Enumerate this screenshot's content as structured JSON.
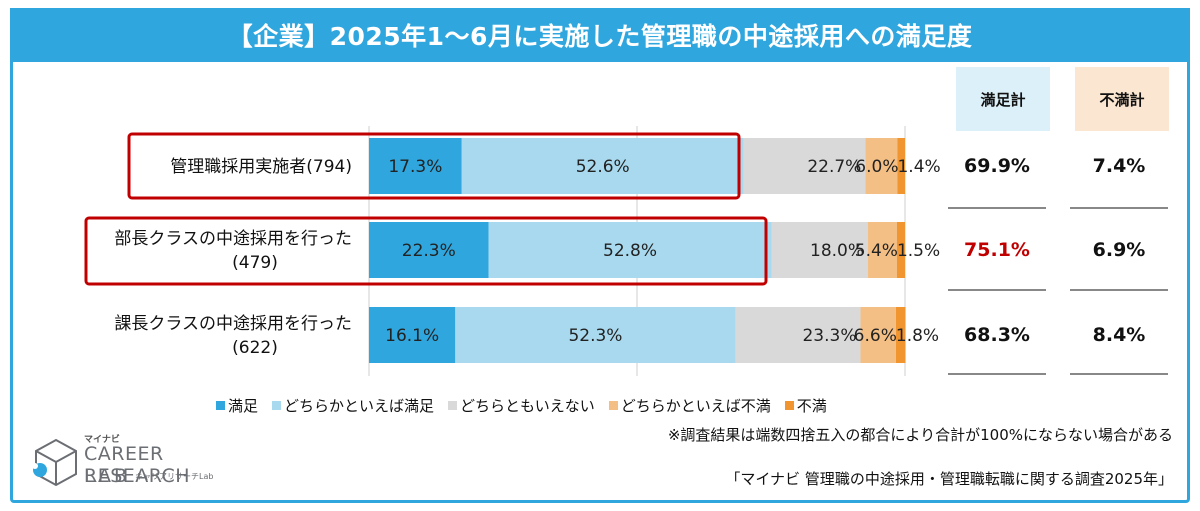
{
  "title": "【企業】2025年1～6月に実施した管理職の中途採用への満足度",
  "columns": {
    "satisfied_total": "満足計",
    "unsatisfied_total": "不満計"
  },
  "rows": [
    {
      "label_line1": "管理職採用実施者(794)",
      "label_line2": "",
      "satisfied_total": "69.9%",
      "unsatisfied_total": "7.4%",
      "highlight_box": true,
      "satisfied_color": "#111111"
    },
    {
      "label_line1": "部長クラスの中途採用を行った",
      "label_line2": "(479)",
      "satisfied_total": "75.1%",
      "unsatisfied_total": "6.9%",
      "highlight_box": true,
      "satisfied_color": "#c00000"
    },
    {
      "label_line1": "課長クラスの中途採用を行った",
      "label_line2": "(622)",
      "satisfied_total": "68.3%",
      "unsatisfied_total": "8.4%",
      "highlight_box": false,
      "satisfied_color": "#111111"
    }
  ],
  "legend": [
    "満足",
    "どちらかといえば満足",
    "どちらともいえない",
    "どちらかといえば不満",
    "不満"
  ],
  "note": "※調査結果は端数四捨五入の都合により合計が100%にならない場合がある",
  "source": "「マイナビ 管理職の中途採用・管理職転職に関する調査2025年」",
  "logo": {
    "small": "マイナビ",
    "main": "CAREER RESEARCH",
    "lab": "LAB",
    "sub": "キャリアリサーチLab"
  },
  "colors": {
    "title_bg": "#2fa6dd",
    "satisfied": "#2fa6dd",
    "somewhat_satisfied": "#a9d9ee",
    "neutral": "#d9d9d9",
    "somewhat_unsatisfied": "#f4bf84",
    "unsatisfied": "#f0952f",
    "highlight_border": "#c00000",
    "col_satisfied_bg": "#dcf0f9",
    "col_unsatisfied_bg": "#fbe6d1"
  },
  "chart_data": {
    "type": "bar",
    "orientation": "horizontal-stacked",
    "categories": [
      "管理職採用実施者(794)",
      "部長クラスの中途採用を行った(479)",
      "課長クラスの中途採用を行った(622)"
    ],
    "series": [
      {
        "name": "満足",
        "values": [
          17.3,
          22.3,
          16.1
        ]
      },
      {
        "name": "どちらかといえば満足",
        "values": [
          52.6,
          52.8,
          52.3
        ]
      },
      {
        "name": "どちらともいえない",
        "values": [
          22.7,
          18.0,
          23.3
        ]
      },
      {
        "name": "どちらかといえば不満",
        "values": [
          6.0,
          5.4,
          6.6
        ]
      },
      {
        "name": "不満",
        "values": [
          1.4,
          1.5,
          1.8
        ]
      }
    ],
    "data_labels": [
      [
        "17.3%",
        "52.6%",
        "22.7%",
        "6.0%",
        "1.4%"
      ],
      [
        "22.3%",
        "52.8%",
        "18.0%",
        "5.4%",
        "1.5%"
      ],
      [
        "16.1%",
        "52.3%",
        "23.3%",
        "6.6%",
        "1.8%"
      ]
    ],
    "xlim": [
      0,
      100
    ],
    "grid": true,
    "legend_position": "bottom"
  }
}
